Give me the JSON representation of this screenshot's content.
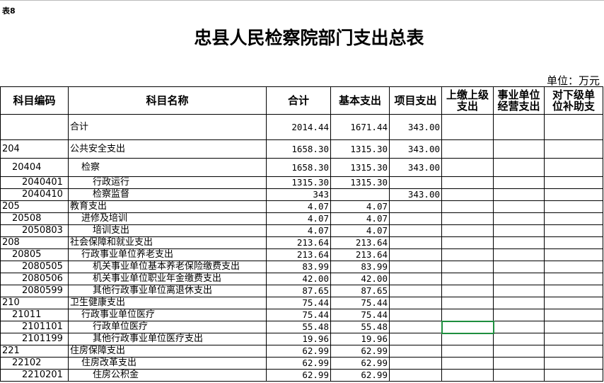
{
  "table_tag": "表8",
  "title": "忠县人民检察院部门支出总表",
  "unit": "单位：万元",
  "headers": [
    "科目编码",
    "科目名称",
    "合计",
    "基本支出",
    "项目支出",
    "上缴上级支出",
    "事业单位经营支出",
    "对下级单位补助支"
  ],
  "rows": [
    {
      "code": "",
      "name": "合计",
      "indent": 0,
      "total": "2014.44",
      "basic": "1671.44",
      "project": "343.00"
    },
    {
      "code": "204",
      "name": "公共安全支出",
      "indent": 0,
      "total": "1658.30",
      "basic": "1315.30",
      "project": "343.00"
    },
    {
      "code": "20404",
      "name": "检察",
      "indent": 1,
      "total": "1658.30",
      "basic": "1315.30",
      "project": "343.00"
    },
    {
      "code": "2040401",
      "name": "行政运行",
      "indent": 2,
      "total": "1315.30",
      "basic": "1315.30",
      "project": ""
    },
    {
      "code": "2040410",
      "name": "检察监督",
      "indent": 2,
      "total": "343",
      "basic": "",
      "project": "343.00"
    },
    {
      "code": "205",
      "name": "教育支出",
      "indent": 0,
      "total": "4.07",
      "basic": "4.07",
      "project": ""
    },
    {
      "code": "20508",
      "name": "进修及培训",
      "indent": 1,
      "total": "4.07",
      "basic": "4.07",
      "project": ""
    },
    {
      "code": "2050803",
      "name": "培训支出",
      "indent": 2,
      "total": "4.07",
      "basic": "4.07",
      "project": ""
    },
    {
      "code": "208",
      "name": "社会保障和就业支出",
      "indent": 0,
      "total": "213.64",
      "basic": "213.64",
      "project": ""
    },
    {
      "code": "20805",
      "name": "行政事业单位养老支出",
      "indent": 1,
      "total": "213.64",
      "basic": "213.64",
      "project": ""
    },
    {
      "code": "2080505",
      "name": "机关事业单位基本养老保险缴费支出",
      "indent": 2,
      "total": "83.99",
      "basic": "83.99",
      "project": ""
    },
    {
      "code": "2080506",
      "name": "机关事业单位职业年金缴费支出",
      "indent": 2,
      "total": "42.00",
      "basic": "42.00",
      "project": ""
    },
    {
      "code": "2080599",
      "name": "其他行政事业单位离退休支出",
      "indent": 2,
      "total": "87.65",
      "basic": "87.65",
      "project": ""
    },
    {
      "code": "210",
      "name": "卫生健康支出",
      "indent": 0,
      "total": "75.44",
      "basic": "75.44",
      "project": ""
    },
    {
      "code": "21011",
      "name": "行政事业单位医疗",
      "indent": 1,
      "total": "75.44",
      "basic": "75.44",
      "project": ""
    },
    {
      "code": "2101101",
      "name": "行政单位医疗",
      "indent": 2,
      "total": "55.48",
      "basic": "55.48",
      "project": ""
    },
    {
      "code": "2101199",
      "name": "其他行政事业单位医疗支出",
      "indent": 2,
      "total": "19.96",
      "basic": "19.96",
      "project": ""
    },
    {
      "code": "221",
      "name": "住房保障支出",
      "indent": 0,
      "total": "62.99",
      "basic": "62.99",
      "project": ""
    },
    {
      "code": "22102",
      "name": "住房改革支出",
      "indent": 1,
      "total": "62.99",
      "basic": "62.99",
      "project": ""
    },
    {
      "code": "2210201",
      "name": "住房公积金",
      "indent": 2,
      "total": "62.99",
      "basic": "62.99",
      "project": ""
    }
  ],
  "selected_cell": {
    "row": "2101101",
    "column": "上缴上级支出"
  },
  "colors": {
    "selection": "#1e8e3e"
  }
}
